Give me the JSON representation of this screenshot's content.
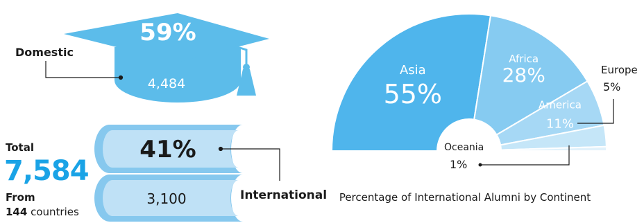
{
  "domestic": {
    "label": "Domestic",
    "percent": "59%",
    "count": "4,484"
  },
  "international": {
    "label": "International",
    "percent": "41%",
    "count": "3,100"
  },
  "total": {
    "label": "Total",
    "value": "7,584",
    "from_label": "From",
    "countries_number": "144",
    "countries_word": "countries"
  },
  "chart_data": {
    "type": "pie",
    "title": "Percentage of International Alumni by Continent",
    "layout": "half-donut (semicircle)",
    "categories": [
      "Asia",
      "Africa",
      "America",
      "Europe",
      "Oceania"
    ],
    "values": [
      55,
      28,
      11,
      5,
      1
    ],
    "value_labels": [
      "55%",
      "28%",
      "11%",
      "5%",
      "1%"
    ],
    "colors": [
      "#4fb5ec",
      "#86cbf1",
      "#a6d8f5",
      "#c5e6f8",
      "#e2f2fb"
    ]
  },
  "colors": {
    "accent_blue": "#1aa3e6",
    "cap_blue": "#5cbcea",
    "book_light": "#bfe1f6",
    "book_mid": "#86c8ee",
    "text_dark": "#1a1a1a"
  },
  "icons": [
    "graduation-cap-icon",
    "book-stack-icon"
  ]
}
